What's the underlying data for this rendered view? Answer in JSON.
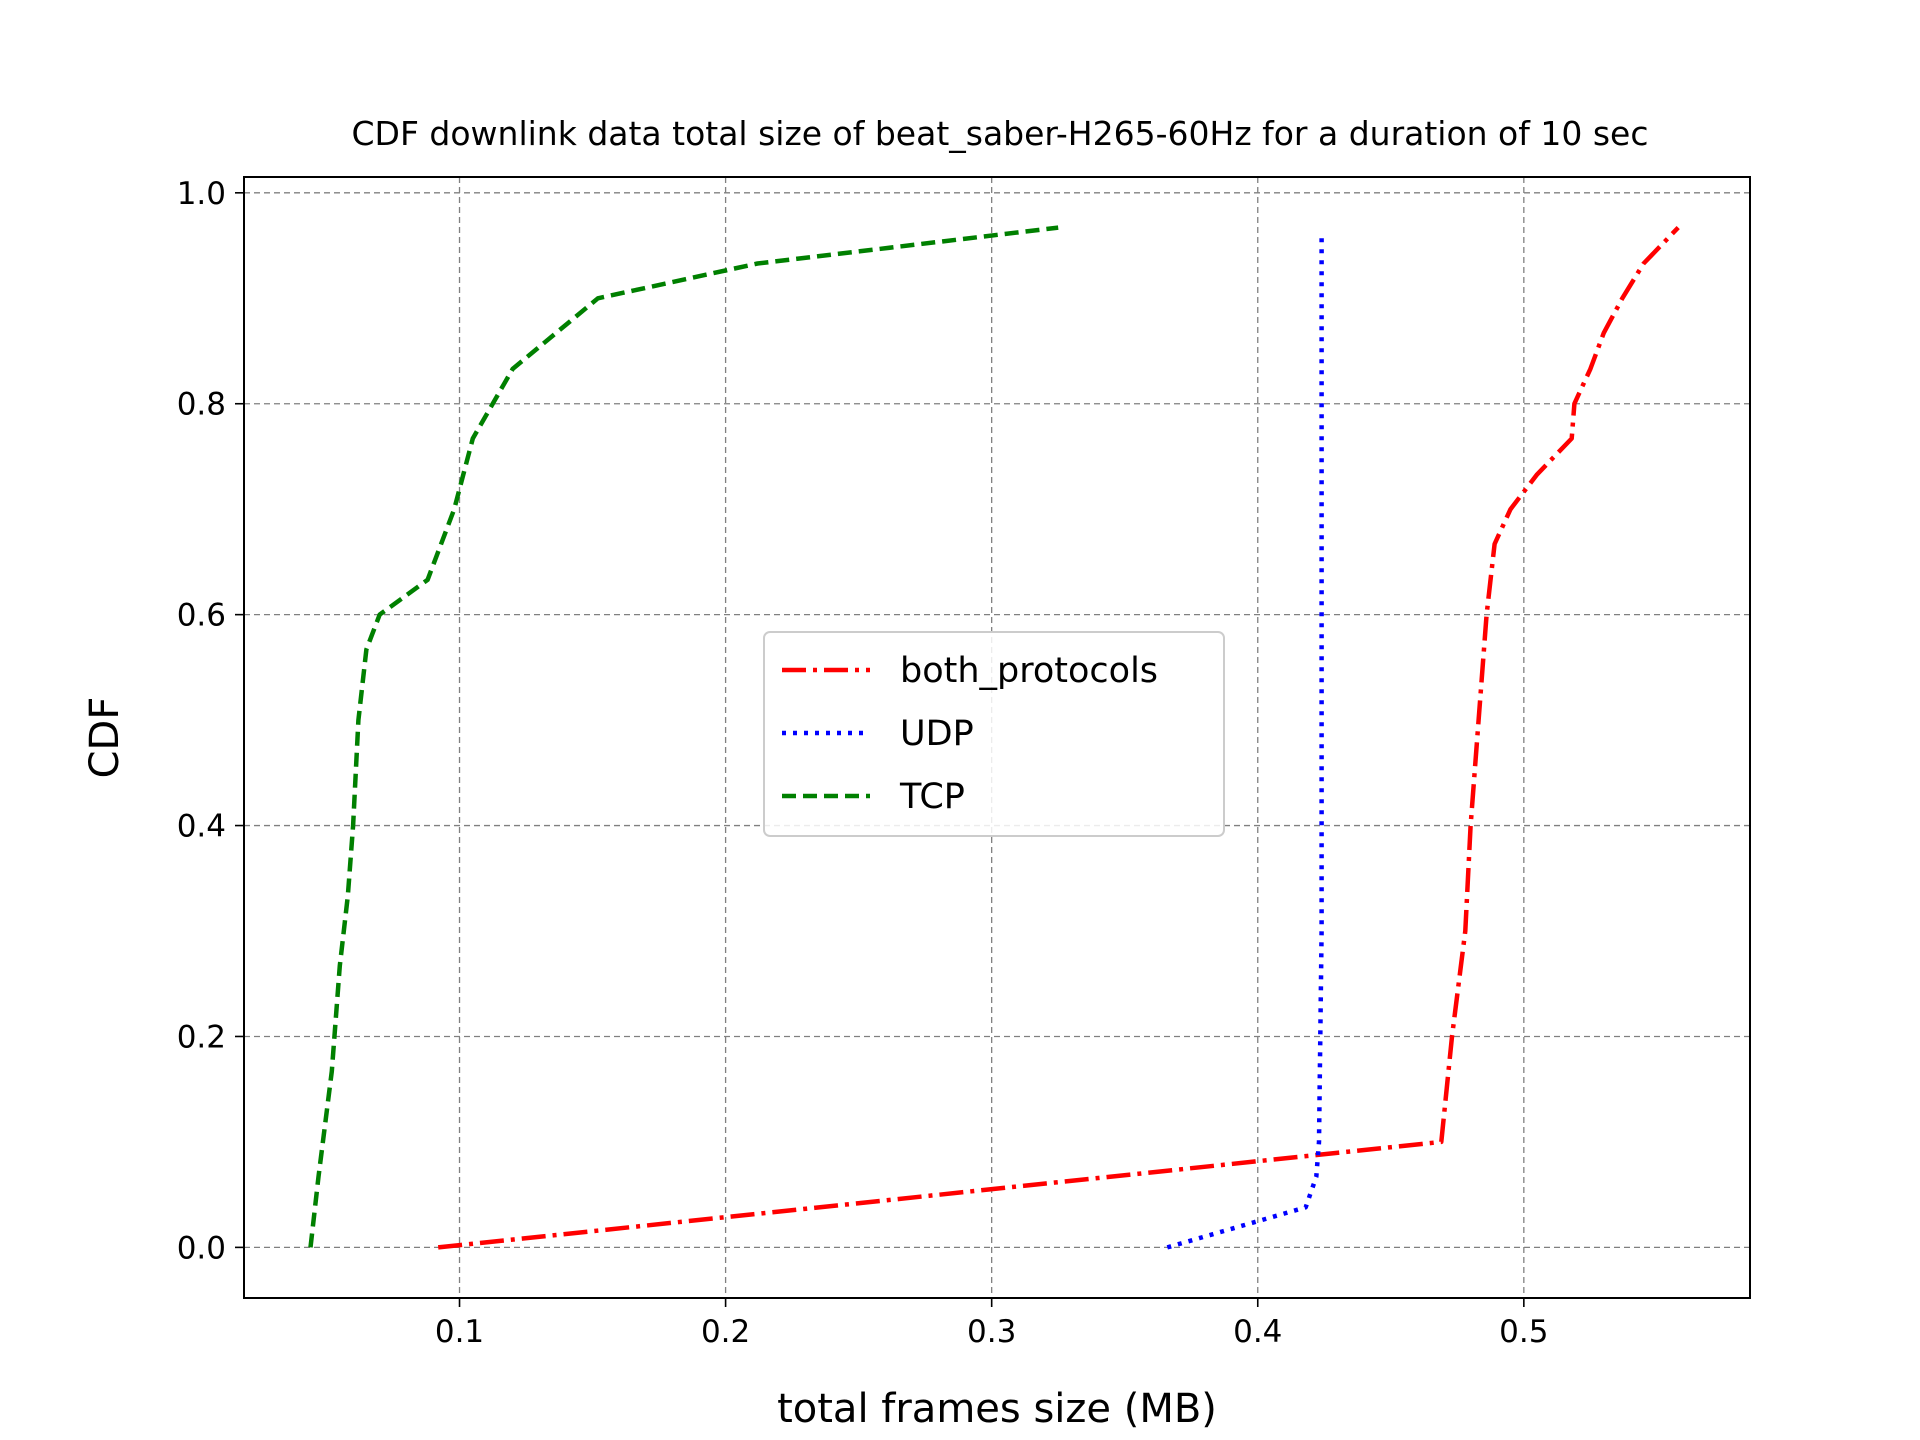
{
  "chart_data": {
    "type": "line",
    "title": "CDF downlink data total size of beat_saber-H265-60Hz for a duration of 10 sec",
    "xlabel": "total frames size (MB)",
    "ylabel": "CDF",
    "xlim": [
      0.019,
      0.585
    ],
    "ylim": [
      -0.048,
      1.015
    ],
    "xticks": [
      0.1,
      0.2,
      0.3,
      0.4,
      0.5
    ],
    "xtick_labels": [
      "0.1",
      "0.2",
      "0.3",
      "0.4",
      "0.5"
    ],
    "yticks": [
      0.0,
      0.2,
      0.4,
      0.6,
      0.8,
      1.0
    ],
    "ytick_labels": [
      "0.0",
      "0.2",
      "0.4",
      "0.6",
      "0.8",
      "1.0"
    ],
    "grid": true,
    "legend_position": "center",
    "series": [
      {
        "name": "both_protocols",
        "color": "#ff0000",
        "style": "dashdot",
        "points": [
          [
            0.092,
            0.0
          ],
          [
            0.469,
            0.1
          ],
          [
            0.473,
            0.2
          ],
          [
            0.478,
            0.3
          ],
          [
            0.48,
            0.4
          ],
          [
            0.483,
            0.5
          ],
          [
            0.486,
            0.6
          ],
          [
            0.489,
            0.667
          ],
          [
            0.495,
            0.7
          ],
          [
            0.505,
            0.733
          ],
          [
            0.518,
            0.767
          ],
          [
            0.519,
            0.8
          ],
          [
            0.525,
            0.833
          ],
          [
            0.53,
            0.867
          ],
          [
            0.537,
            0.9
          ],
          [
            0.545,
            0.933
          ],
          [
            0.558,
            0.967
          ]
        ]
      },
      {
        "name": "UDP",
        "color": "#0000ff",
        "style": "dotted",
        "points": [
          [
            0.366,
            0.0
          ],
          [
            0.418,
            0.038
          ],
          [
            0.422,
            0.067
          ],
          [
            0.423,
            0.1
          ],
          [
            0.424,
            0.3
          ],
          [
            0.424,
            0.6
          ],
          [
            0.424,
            0.96
          ]
        ]
      },
      {
        "name": "TCP",
        "color": "#008000",
        "style": "dashed",
        "points": [
          [
            0.044,
            0.0
          ],
          [
            0.047,
            0.067
          ],
          [
            0.052,
            0.167
          ],
          [
            0.055,
            0.267
          ],
          [
            0.058,
            0.333
          ],
          [
            0.06,
            0.4
          ],
          [
            0.062,
            0.5
          ],
          [
            0.065,
            0.567
          ],
          [
            0.07,
            0.6
          ],
          [
            0.088,
            0.633
          ],
          [
            0.098,
            0.7
          ],
          [
            0.105,
            0.767
          ],
          [
            0.12,
            0.833
          ],
          [
            0.152,
            0.9
          ],
          [
            0.212,
            0.933
          ],
          [
            0.325,
            0.967
          ]
        ]
      }
    ]
  }
}
